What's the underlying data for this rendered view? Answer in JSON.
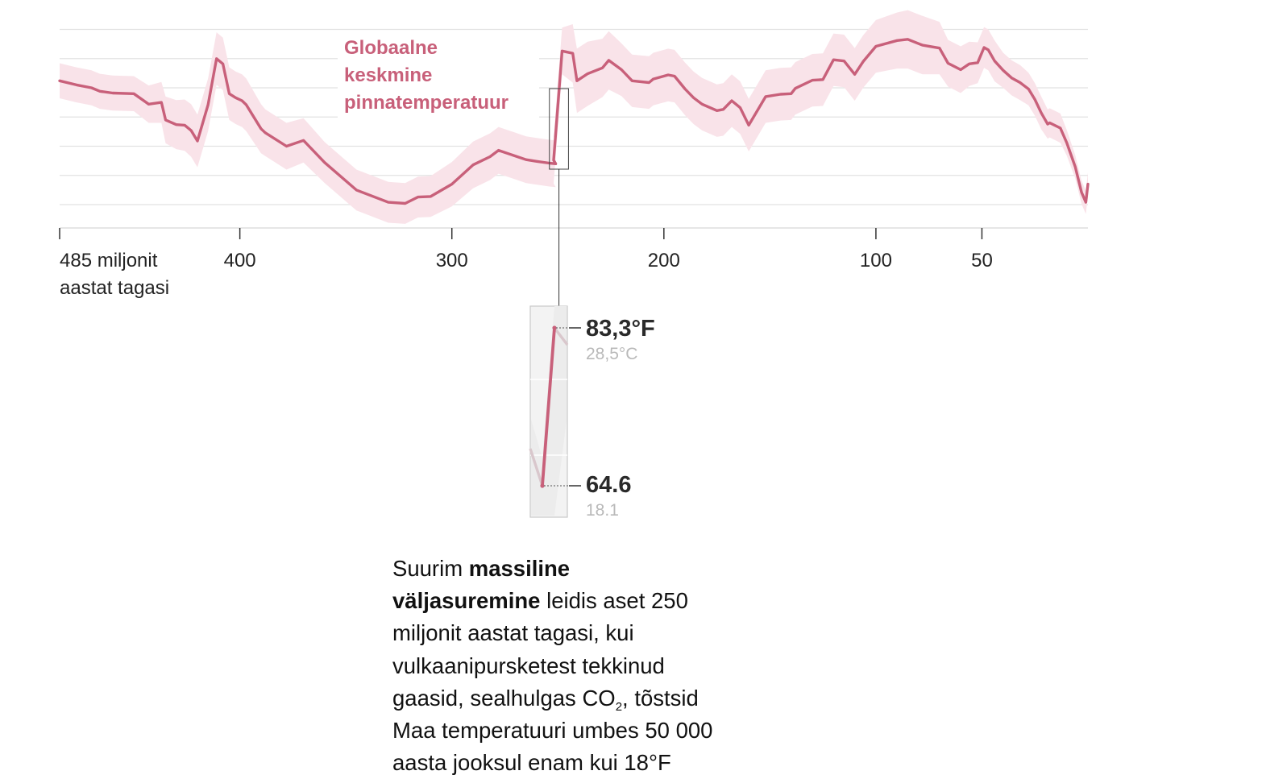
{
  "chart_data": {
    "type": "line",
    "title": "Globaalne keskmine pinnatemperatuur",
    "title_lines": [
      "Globaalne",
      "keskmine",
      "pinnatemperatuur"
    ],
    "xlabel": "",
    "ylabel": "",
    "x_reversed": true,
    "x_unit": "miljonit aastat tagasi",
    "xlim": [
      485,
      0
    ],
    "ylim": [
      53,
      89
    ],
    "grid": true,
    "ticks": [
      {
        "value": 485,
        "lines": [
          "485 miljonit",
          "aastat tagasi"
        ]
      },
      {
        "value": 400,
        "lines": [
          "400"
        ]
      },
      {
        "value": 300,
        "lines": [
          "300"
        ]
      },
      {
        "value": 200,
        "lines": [
          "200"
        ]
      },
      {
        "value": 100,
        "lines": [
          "100"
        ]
      },
      {
        "value": 50,
        "lines": [
          "50"
        ]
      }
    ],
    "gridlines": [
      57,
      62,
      67,
      72,
      77,
      82,
      87
    ],
    "colors": {
      "line": "#c8607a",
      "band": "#f9e3e9",
      "grid": "#e2e2e2",
      "axis": "#333333"
    },
    "series": [
      {
        "x": [
          485,
          477,
          470,
          466,
          460,
          450,
          443,
          437,
          435,
          430,
          426,
          423,
          420,
          415,
          411,
          408,
          405,
          402,
          399,
          397,
          390,
          388,
          378,
          370,
          360,
          345,
          330,
          322,
          316,
          310,
          300,
          290,
          282,
          278,
          265,
          260,
          254,
          251,
          252,
          248,
          243,
          241,
          236,
          229,
          226,
          220,
          215,
          207,
          205,
          198,
          195,
          190,
          186,
          182,
          175,
          172,
          168,
          164,
          160,
          152,
          145,
          140,
          138,
          130,
          125,
          120,
          115,
          110,
          106,
          100,
          90,
          85,
          78,
          70,
          66,
          60,
          56,
          52,
          49,
          47,
          44,
          40,
          36,
          32,
          28,
          25,
          22,
          19,
          18,
          13,
          10,
          6,
          3,
          1,
          0
        ],
        "y": [
          78.2,
          77.5,
          77.0,
          76.4,
          76.1,
          76.0,
          74.2,
          74.5,
          71.5,
          70.7,
          70.6,
          69.7,
          67.9,
          74.1,
          82.0,
          81.1,
          76.0,
          75.3,
          74.8,
          74.1,
          70.0,
          69.3,
          67.0,
          68.0,
          64.2,
          59.5,
          57.4,
          57.2,
          58.3,
          58.4,
          60.5,
          63.8,
          65.2,
          66.3,
          64.7,
          64.4,
          64.1,
          64.0,
          64.6,
          83.3,
          82.9,
          78.2,
          79.4,
          80.4,
          81.7,
          80.1,
          78.2,
          77.9,
          78.5,
          79.2,
          79.0,
          76.8,
          75.3,
          74.2,
          73.1,
          73.3,
          74.8,
          73.6,
          70.6,
          75.5,
          75.9,
          76.0,
          76.9,
          78.3,
          78.4,
          81.8,
          81.6,
          79.3,
          81.5,
          84.1,
          85.1,
          85.3,
          84.3,
          83.8,
          81.2,
          80.1,
          81.1,
          81.3,
          83.9,
          83.5,
          81.6,
          80.0,
          78.7,
          77.9,
          76.8,
          75.0,
          72.7,
          70.8,
          71.0,
          70.1,
          67.6,
          63.5,
          59.1,
          57.4,
          60.5
        ],
        "band": [
          3.0,
          3.0,
          3.0,
          3.0,
          3.0,
          3.0,
          3.2,
          3.5,
          4.0,
          4.2,
          4.4,
          4.5,
          4.5,
          4.5,
          4.5,
          4.5,
          4.5,
          4.5,
          4.5,
          4.5,
          4.2,
          4.0,
          4.0,
          3.8,
          3.5,
          3.5,
          3.5,
          3.5,
          3.5,
          3.5,
          3.8,
          4.0,
          4.0,
          4.0,
          4.0,
          4.0,
          4.0,
          4.0,
          4.0,
          4.0,
          5.0,
          5.5,
          5.5,
          5.0,
          5.0,
          4.5,
          4.5,
          4.5,
          4.5,
          4.5,
          4.5,
          4.5,
          4.5,
          4.5,
          4.5,
          4.5,
          4.5,
          4.5,
          4.5,
          4.5,
          4.5,
          4.5,
          4.5,
          4.5,
          4.5,
          4.5,
          4.5,
          4.5,
          4.5,
          4.5,
          4.8,
          5.0,
          5.0,
          4.5,
          4.0,
          4.0,
          3.8,
          3.5,
          3.5,
          3.5,
          3.5,
          3.0,
          3.0,
          3.0,
          2.8,
          2.8,
          2.8,
          2.5,
          2.5,
          2.5,
          2.2,
          2.0,
          2.0,
          2.0,
          2.0
        ]
      }
    ],
    "inset": {
      "high": {
        "f": "83,3°F",
        "c": "28,5°C",
        "value": 83.3
      },
      "low": {
        "f": "64.6",
        "c": "18.1",
        "value": 64.6
      }
    },
    "annotation": {
      "parts": [
        {
          "t": "Suurim "
        },
        {
          "t": "massiline",
          "b": true
        },
        {
          "br": true
        },
        {
          "t": "väljasuremine",
          "b": true
        },
        {
          "t": " leidis aset 250"
        },
        {
          "br": true
        },
        {
          "t": "miljonit aastat tagasi, kui"
        },
        {
          "br": true
        },
        {
          "t": "vulkaanipursketest tekkinud"
        },
        {
          "br": true
        },
        {
          "t": "gaasid, sealhulgas CO"
        },
        {
          "t": "2",
          "sub": true
        },
        {
          "t": ", tõstsid"
        },
        {
          "br": true
        },
        {
          "t": "Maa temperatuuri umbes 50 000"
        },
        {
          "br": true
        },
        {
          "t": "aasta jooksul enam kui 18°F"
        }
      ]
    }
  }
}
